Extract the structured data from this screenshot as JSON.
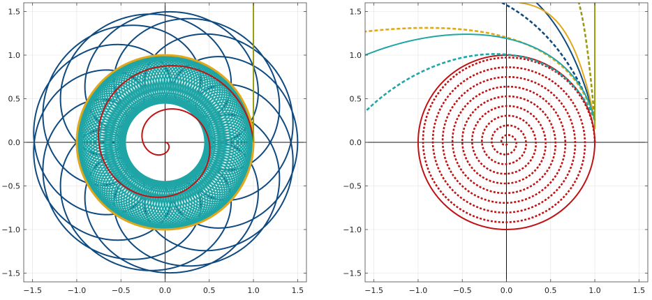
{
  "colors": {
    "navy": "#0e4a80",
    "gold": "#e1a71b",
    "teal": "#1fa5a5",
    "red": "#c01212",
    "olive": "#9a9a10"
  },
  "chart_data": [
    {
      "type": "line",
      "title": "",
      "xlabel": "",
      "ylabel": "",
      "xlim": [
        -1.6,
        1.6
      ],
      "ylim": [
        -1.6,
        1.6
      ],
      "xticks": [
        -1.5,
        -1.0,
        -0.5,
        0.0,
        0.5,
        1.0,
        1.5
      ],
      "yticks": [
        -1.5,
        -1.0,
        -0.5,
        0.0,
        0.5,
        1.0,
        1.5
      ],
      "xtick_labels": [
        "−1.5",
        "−1.0",
        "−0.5",
        "0.0",
        "0.5",
        "1.0",
        "1.5"
      ],
      "ytick_labels": [
        "−1.5",
        "−1.0",
        "−0.5",
        "0.0",
        "0.5",
        "1.0",
        "1.5"
      ],
      "grid": false,
      "series": [
        {
          "kind": "epicycle",
          "color": "#0e4a80",
          "R": 1.0,
          "a": 0.5,
          "ratio": 3.6,
          "turns": 5,
          "style": "solid"
        },
        {
          "kind": "epicycle",
          "color": "#1fa5a5",
          "R": 0.72,
          "a": 0.27,
          "ratio": 29.6,
          "turns": 5,
          "style": "solid"
        },
        {
          "kind": "circle",
          "color": "#e1a71b",
          "r": 1.0,
          "style": "solid",
          "width": 3
        },
        {
          "kind": "spiral",
          "color": "#c01212",
          "r0": 0.0,
          "r1": 1.0,
          "phi0": 12.566,
          "phi1": 0.0,
          "style": "solid"
        },
        {
          "kind": "vertical",
          "color": "#9a9a10",
          "x": 1.0,
          "y0": 0.0,
          "y1": 1.6,
          "style": "solid"
        }
      ]
    },
    {
      "type": "line",
      "title": "",
      "xlabel": "",
      "ylabel": "",
      "xlim": [
        -1.6,
        1.6
      ],
      "ylim": [
        -1.6,
        1.6
      ],
      "xticks": [
        -1.5,
        -1.0,
        -0.5,
        0.0,
        0.5,
        1.0,
        1.5
      ],
      "yticks": [
        -1.5,
        -1.0,
        -0.5,
        0.0,
        0.5,
        1.0,
        1.5
      ],
      "xtick_labels": [
        "−1.5",
        "−1.0",
        "−0.5",
        "0.0",
        "0.5",
        "1.0",
        "1.5"
      ],
      "ytick_labels": [
        "−1.5",
        "−1.0",
        "−0.5",
        "0.0",
        "0.5",
        "1.0",
        "1.5"
      ],
      "grid": false,
      "series": [
        {
          "kind": "circle",
          "color": "#c01212",
          "r": 1.0,
          "style": "solid"
        },
        {
          "kind": "spiral",
          "color": "#c01212",
          "r0": 1.0,
          "r1": 0.0,
          "phi0": 0.0,
          "phi1": 56.5,
          "style": "dotted"
        },
        {
          "kind": "bezier",
          "color": "#0e4a80",
          "style": "solid",
          "pts": [
            [
              1.0,
              0.25
            ],
            [
              0.82,
              1.0
            ],
            [
              0.55,
              1.4
            ],
            [
              0.34,
              1.6
            ]
          ]
        },
        {
          "kind": "bezier",
          "color": "#0e4a80",
          "style": "dashed",
          "pts": [
            [
              1.0,
              0.25
            ],
            [
              0.78,
              0.95
            ],
            [
              0.35,
              1.4
            ],
            [
              -0.05,
              1.6
            ]
          ]
        },
        {
          "kind": "bezier",
          "color": "#e1a71b",
          "style": "solid",
          "pts": [
            [
              1.0,
              0.25
            ],
            [
              0.8,
              1.25
            ],
            [
              0.55,
              1.55
            ],
            [
              0.15,
              1.6
            ]
          ]
        },
        {
          "kind": "bezier",
          "color": "#e1a71b",
          "style": "dashed",
          "pts": [
            [
              1.0,
              0.25
            ],
            [
              0.78,
              1.05
            ],
            [
              0.0,
              1.45
            ],
            [
              -1.6,
              1.27
            ]
          ]
        },
        {
          "kind": "bezier",
          "color": "#1fa5a5",
          "style": "solid",
          "pts": [
            [
              1.0,
              0.25
            ],
            [
              0.75,
              1.3
            ],
            [
              -0.5,
              1.45
            ],
            [
              -1.6,
              1.0
            ]
          ]
        },
        {
          "kind": "bezier",
          "color": "#1fa5a5",
          "style": "dashed",
          "pts": [
            [
              1.0,
              0.25
            ],
            [
              0.6,
              1.3
            ],
            [
              -0.75,
              1.2
            ],
            [
              -1.6,
              0.35
            ]
          ]
        },
        {
          "kind": "vertical",
          "color": "#9a9a10",
          "x": 1.0,
          "y0": 0.15,
          "y1": 1.6,
          "style": "solid"
        },
        {
          "kind": "bezier",
          "color": "#9a9a10",
          "style": "dashed",
          "pts": [
            [
              1.0,
              0.25
            ],
            [
              0.95,
              0.8
            ],
            [
              0.9,
              1.3
            ],
            [
              0.82,
              1.6
            ]
          ]
        }
      ]
    }
  ]
}
